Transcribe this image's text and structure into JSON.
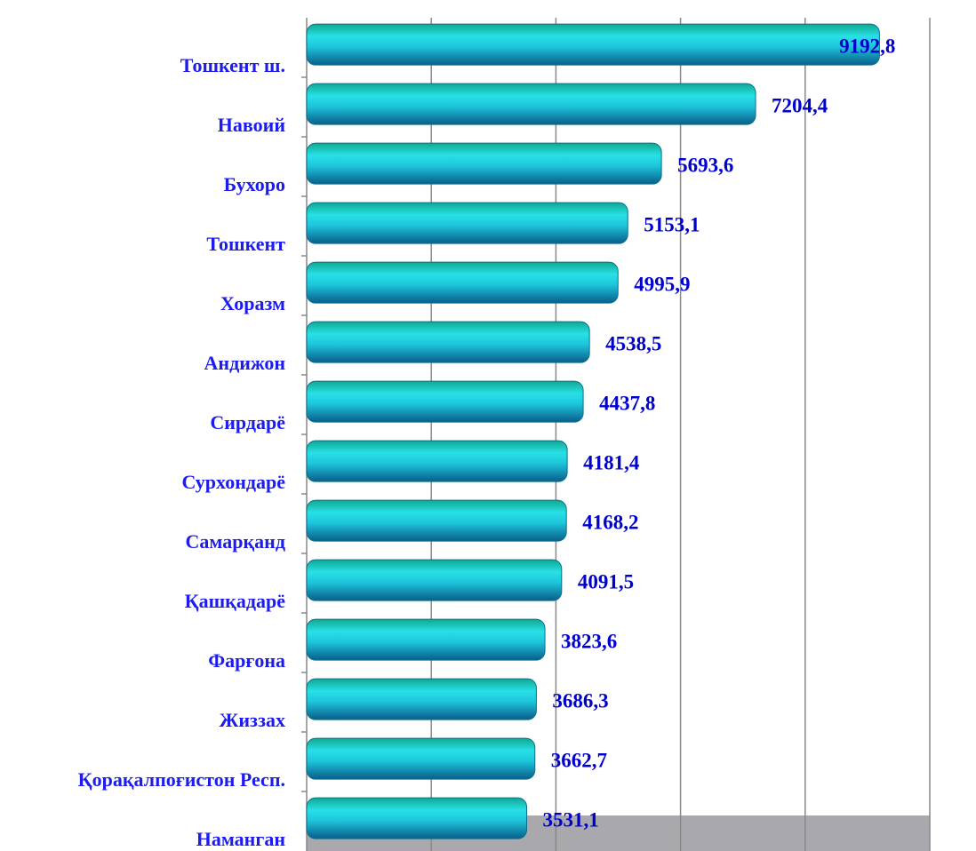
{
  "chart_data": {
    "type": "bar",
    "orientation": "horizontal",
    "categories": [
      "Тошкент ш.",
      "Навоий",
      "Бухоро",
      "Тошкент",
      "Хоразм",
      "Андижон",
      "Сирдарё",
      "Сурхондарё",
      "Самарқанд",
      "Қашқадарё",
      "Фарғона",
      "Жиззах",
      "Қорақалпоғистон Респ.",
      "Наманган"
    ],
    "values": [
      9192.8,
      7204.4,
      5693.6,
      5153.1,
      4995.9,
      4538.5,
      4437.8,
      4181.4,
      4168.2,
      4091.5,
      3823.6,
      3686.3,
      3662.7,
      3531.1
    ],
    "value_labels": [
      "9192,8",
      "7204,4",
      "5693,6",
      "5153,1",
      "4995,9",
      "4538,5",
      "4437,8",
      "4181,4",
      "4168,2",
      "4091,5",
      "3823,6",
      "3686,3",
      "3662,7",
      "3531,1"
    ],
    "color": "#1fc8d8",
    "xlim": [
      0,
      10000
    ],
    "xticks": [
      0,
      2000,
      4000,
      6000,
      8000,
      10000
    ],
    "grid": true
  }
}
